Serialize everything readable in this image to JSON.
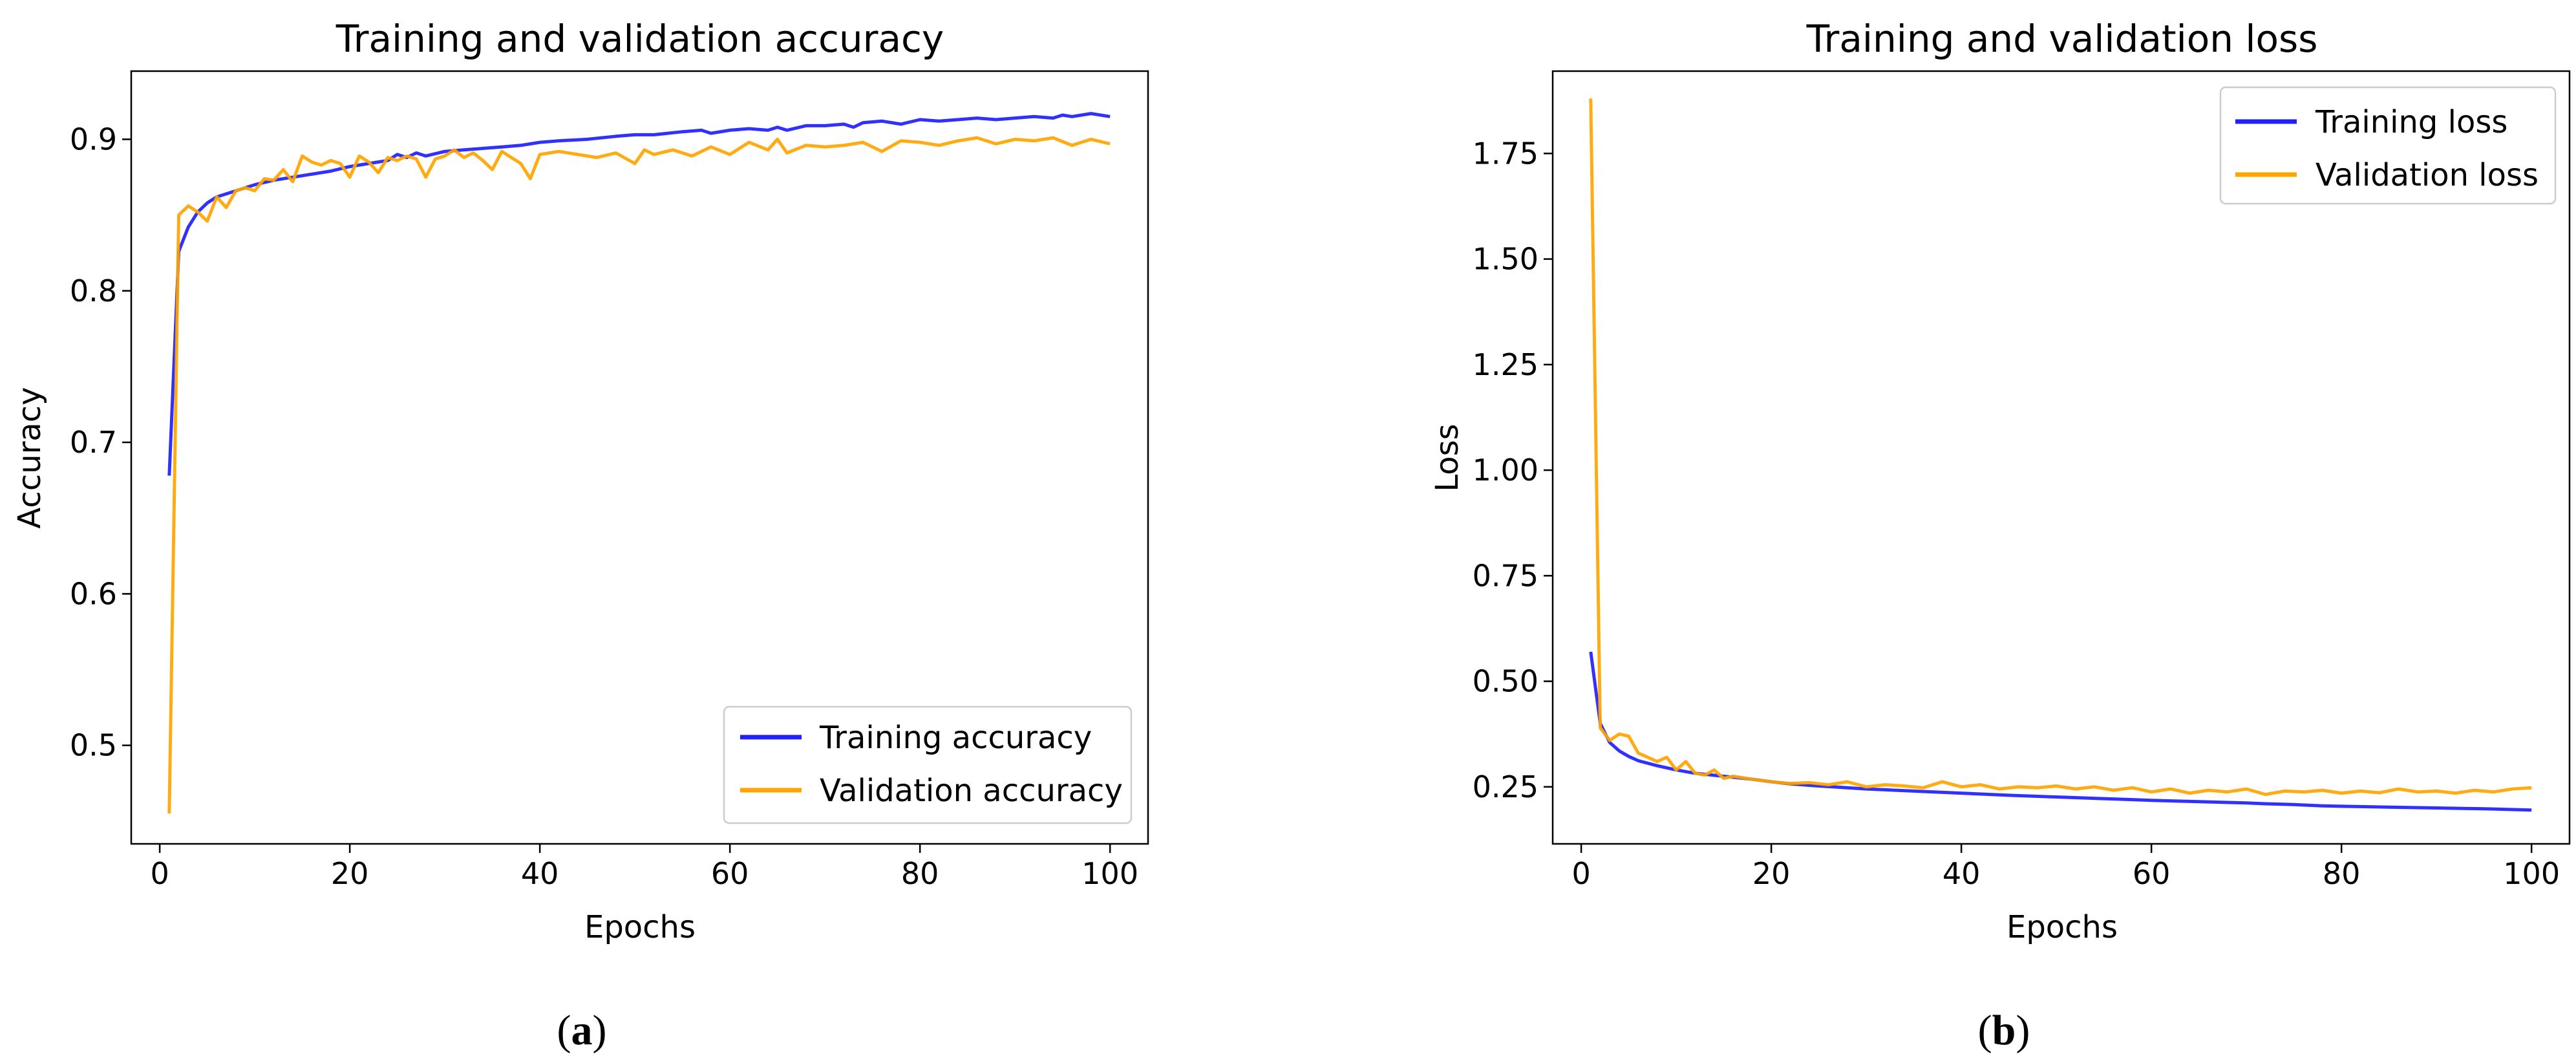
{
  "chart_data": [
    {
      "id": "a",
      "type": "line",
      "title": "Training and validation accuracy",
      "xlabel": "Epochs",
      "ylabel": "Accuracy",
      "xlim": [
        -3,
        104
      ],
      "ylim": [
        0.435,
        0.945
      ],
      "xticks": [
        0,
        20,
        40,
        60,
        80,
        100
      ],
      "yticks": [
        0.5,
        0.6,
        0.7,
        0.8,
        0.9
      ],
      "grid": false,
      "legend_position": "lower-right",
      "caption": {
        "open": "(",
        "letter": "a",
        "close": ")"
      },
      "series": [
        {
          "name": "Training accuracy",
          "color": "#1f1fff",
          "x": [
            1,
            2,
            3,
            4,
            5,
            6,
            8,
            10,
            12,
            15,
            18,
            20,
            22,
            24,
            25,
            26,
            27,
            28,
            30,
            32,
            34,
            36,
            38,
            40,
            42,
            45,
            48,
            50,
            52,
            55,
            57,
            58,
            60,
            62,
            64,
            65,
            66,
            68,
            70,
            72,
            73,
            74,
            76,
            78,
            80,
            82,
            84,
            86,
            88,
            90,
            92,
            94,
            95,
            96,
            98,
            100
          ],
          "y": [
            0.678,
            0.826,
            0.842,
            0.852,
            0.858,
            0.862,
            0.866,
            0.87,
            0.873,
            0.876,
            0.879,
            0.882,
            0.884,
            0.886,
            0.89,
            0.888,
            0.891,
            0.889,
            0.892,
            0.893,
            0.894,
            0.895,
            0.896,
            0.898,
            0.899,
            0.9,
            0.902,
            0.903,
            0.903,
            0.905,
            0.906,
            0.904,
            0.906,
            0.907,
            0.906,
            0.908,
            0.906,
            0.909,
            0.909,
            0.91,
            0.908,
            0.911,
            0.912,
            0.91,
            0.913,
            0.912,
            0.913,
            0.914,
            0.913,
            0.914,
            0.915,
            0.914,
            0.916,
            0.915,
            0.917,
            0.915
          ]
        },
        {
          "name": "Validation accuracy",
          "color": "#ffa500",
          "x": [
            1,
            2,
            3,
            4,
            5,
            6,
            7,
            8,
            9,
            10,
            11,
            12,
            13,
            14,
            15,
            16,
            17,
            18,
            19,
            20,
            21,
            22,
            23,
            24,
            25,
            26,
            27,
            28,
            29,
            30,
            31,
            32,
            33,
            34,
            35,
            36,
            37,
            38,
            39,
            40,
            42,
            44,
            46,
            48,
            50,
            51,
            52,
            54,
            56,
            58,
            60,
            62,
            64,
            65,
            66,
            68,
            70,
            72,
            74,
            76,
            78,
            80,
            82,
            84,
            86,
            88,
            90,
            92,
            94,
            96,
            98,
            100
          ],
          "y": [
            0.455,
            0.85,
            0.856,
            0.852,
            0.846,
            0.862,
            0.855,
            0.866,
            0.868,
            0.866,
            0.874,
            0.873,
            0.88,
            0.872,
            0.889,
            0.885,
            0.883,
            0.886,
            0.884,
            0.875,
            0.889,
            0.885,
            0.878,
            0.888,
            0.886,
            0.889,
            0.887,
            0.875,
            0.887,
            0.889,
            0.893,
            0.888,
            0.891,
            0.886,
            0.88,
            0.892,
            0.888,
            0.884,
            0.874,
            0.89,
            0.892,
            0.89,
            0.888,
            0.891,
            0.884,
            0.893,
            0.89,
            0.893,
            0.889,
            0.895,
            0.89,
            0.898,
            0.893,
            0.9,
            0.891,
            0.896,
            0.895,
            0.896,
            0.898,
            0.892,
            0.899,
            0.898,
            0.896,
            0.899,
            0.901,
            0.897,
            0.9,
            0.899,
            0.901,
            0.896,
            0.9,
            0.897
          ]
        }
      ]
    },
    {
      "id": "b",
      "type": "line",
      "title": "Training and validation loss",
      "xlabel": "Epochs",
      "ylabel": "Loss",
      "xlim": [
        -3,
        104
      ],
      "ylim": [
        0.115,
        1.945
      ],
      "xticks": [
        0,
        20,
        40,
        60,
        80,
        100
      ],
      "yticks": [
        0.25,
        0.5,
        0.75,
        1.0,
        1.25,
        1.5,
        1.75
      ],
      "ytick_labels": [
        "0.25",
        "0.50",
        "0.75",
        "1.00",
        "1.25",
        "1.50",
        "1.75"
      ],
      "grid": false,
      "legend_position": "upper-right",
      "caption": {
        "open": "(",
        "letter": "b",
        "close": ")"
      },
      "series": [
        {
          "name": "Training loss",
          "color": "#1f1fff",
          "x": [
            1,
            2,
            3,
            4,
            5,
            6,
            8,
            10,
            12,
            15,
            18,
            20,
            22,
            25,
            28,
            30,
            35,
            40,
            45,
            50,
            55,
            60,
            65,
            70,
            72,
            75,
            78,
            80,
            85,
            90,
            95,
            100
          ],
          "y": [
            0.57,
            0.4,
            0.355,
            0.335,
            0.322,
            0.312,
            0.3,
            0.29,
            0.282,
            0.275,
            0.268,
            0.262,
            0.257,
            0.252,
            0.248,
            0.245,
            0.24,
            0.235,
            0.23,
            0.226,
            0.222,
            0.218,
            0.215,
            0.212,
            0.21,
            0.208,
            0.205,
            0.204,
            0.202,
            0.2,
            0.198,
            0.195
          ]
        },
        {
          "name": "Validation loss",
          "color": "#ffa500",
          "x": [
            1,
            2,
            3,
            4,
            5,
            6,
            7,
            8,
            9,
            10,
            11,
            12,
            13,
            14,
            15,
            16,
            18,
            20,
            22,
            24,
            26,
            28,
            30,
            32,
            34,
            36,
            38,
            40,
            42,
            44,
            46,
            48,
            50,
            52,
            54,
            56,
            58,
            60,
            62,
            64,
            66,
            68,
            70,
            72,
            74,
            76,
            78,
            80,
            82,
            84,
            86,
            88,
            90,
            92,
            94,
            96,
            98,
            100
          ],
          "y": [
            1.88,
            0.39,
            0.36,
            0.375,
            0.37,
            0.33,
            0.32,
            0.31,
            0.32,
            0.29,
            0.31,
            0.282,
            0.278,
            0.29,
            0.27,
            0.275,
            0.268,
            0.262,
            0.258,
            0.26,
            0.255,
            0.262,
            0.25,
            0.255,
            0.252,
            0.248,
            0.262,
            0.25,
            0.255,
            0.245,
            0.25,
            0.248,
            0.252,
            0.245,
            0.25,
            0.242,
            0.248,
            0.238,
            0.245,
            0.235,
            0.242,
            0.238,
            0.245,
            0.232,
            0.24,
            0.238,
            0.242,
            0.235,
            0.24,
            0.236,
            0.245,
            0.238,
            0.24,
            0.235,
            0.242,
            0.238,
            0.245,
            0.248
          ]
        }
      ]
    }
  ]
}
